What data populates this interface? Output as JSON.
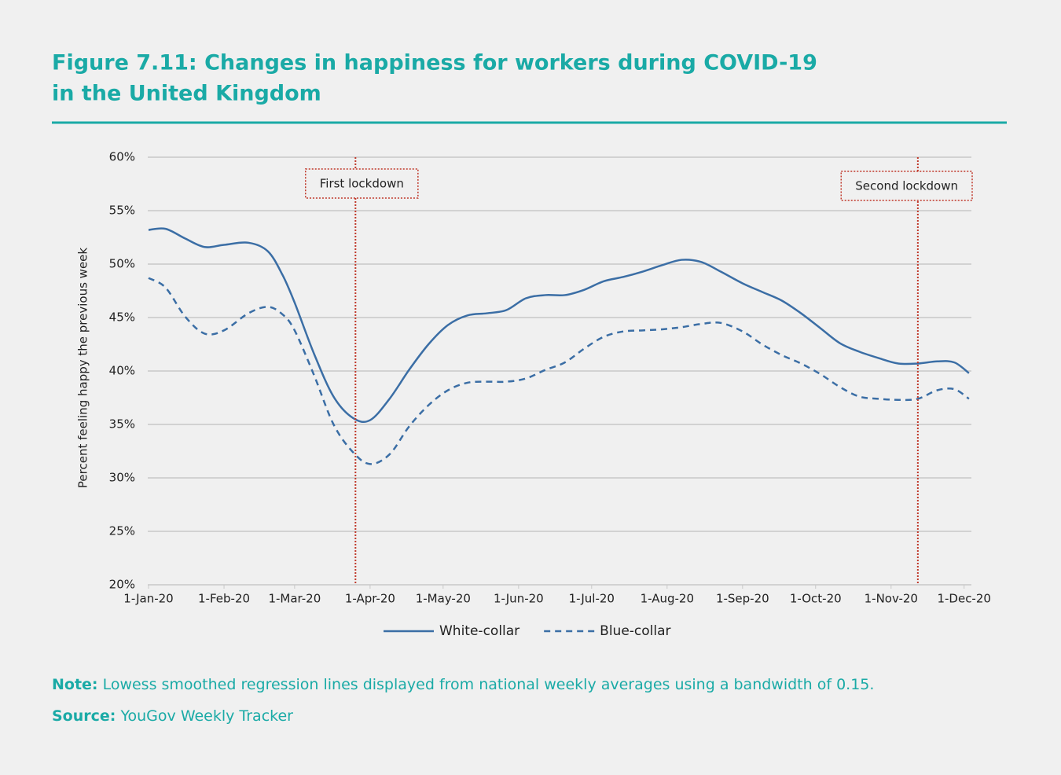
{
  "chart_data": {
    "type": "line",
    "title": "Figure 7.11: Changes in happiness for workers during COVID-19",
    "title_line2": "in the United Kingdom",
    "y_label": "Percent feeling happy the previous week",
    "x": [
      "2020-01-01",
      "2020-01-08",
      "2020-01-16",
      "2020-01-24",
      "2020-02-01",
      "2020-02-11",
      "2020-02-19",
      "2020-02-25",
      "2020-03-01",
      "2020-03-09",
      "2020-03-17",
      "2020-03-25",
      "2020-04-01",
      "2020-04-09",
      "2020-04-17",
      "2020-04-25",
      "2020-05-03",
      "2020-05-11",
      "2020-05-19",
      "2020-05-27",
      "2020-06-04",
      "2020-06-12",
      "2020-06-20",
      "2020-06-28",
      "2020-07-06",
      "2020-07-14",
      "2020-07-22",
      "2020-07-30",
      "2020-08-07",
      "2020-08-15",
      "2020-08-23",
      "2020-09-01",
      "2020-09-09",
      "2020-09-17",
      "2020-09-25",
      "2020-10-03",
      "2020-10-11",
      "2020-10-19",
      "2020-10-27",
      "2020-11-04",
      "2020-11-12",
      "2020-11-20",
      "2020-11-27",
      "2020-12-03"
    ],
    "series": [
      {
        "name": "White-collar",
        "color": "#3b6ea5",
        "dash": false,
        "values": [
          53.2,
          53.3,
          52.4,
          51.6,
          51.8,
          52.0,
          51.2,
          49.0,
          46.4,
          41.6,
          37.6,
          35.6,
          35.4,
          37.4,
          40.1,
          42.5,
          44.3,
          45.2,
          45.4,
          45.7,
          46.8,
          47.1,
          47.1,
          47.6,
          48.4,
          48.8,
          49.3,
          49.9,
          50.4,
          50.2,
          49.3,
          48.2,
          47.4,
          46.6,
          45.4,
          44.0,
          42.6,
          41.8,
          41.2,
          40.7,
          40.7,
          40.9,
          40.8,
          39.8
        ]
      },
      {
        "name": "Blue-collar",
        "color": "#3b6ea5",
        "dash": true,
        "values": [
          48.7,
          47.8,
          45.1,
          43.5,
          43.8,
          45.4,
          46.0,
          45.3,
          43.8,
          39.6,
          35.0,
          32.4,
          31.3,
          32.2,
          34.8,
          36.8,
          38.2,
          38.9,
          39.0,
          39.0,
          39.3,
          40.1,
          40.8,
          42.1,
          43.2,
          43.7,
          43.8,
          43.9,
          44.1,
          44.4,
          44.5,
          43.7,
          42.5,
          41.5,
          40.7,
          39.7,
          38.5,
          37.6,
          37.4,
          37.3,
          37.4,
          38.2,
          38.3,
          37.4
        ]
      }
    ],
    "xlim": [
      "2020-01-01",
      "2020-12-04"
    ],
    "xticks": [
      {
        "value": "2020-01-01",
        "label": "1-Jan-20"
      },
      {
        "value": "2020-02-01",
        "label": "1-Feb-20"
      },
      {
        "value": "2020-03-01",
        "label": "1-Mar-20"
      },
      {
        "value": "2020-04-01",
        "label": "1-Apr-20"
      },
      {
        "value": "2020-05-01",
        "label": "1-May-20"
      },
      {
        "value": "2020-06-01",
        "label": "1-Jun-20"
      },
      {
        "value": "2020-07-01",
        "label": "1-Jul-20"
      },
      {
        "value": "2020-08-01",
        "label": "1-Aug-20"
      },
      {
        "value": "2020-09-01",
        "label": "1-Sep-20"
      },
      {
        "value": "2020-10-01",
        "label": "1-Oct-20"
      },
      {
        "value": "2020-11-01",
        "label": "1-Nov-20"
      },
      {
        "value": "2020-12-01",
        "label": "1-Dec-20"
      }
    ],
    "ylim": [
      20,
      60
    ],
    "yticks": [
      {
        "value": 20,
        "label": "20%"
      },
      {
        "value": 25,
        "label": "25%"
      },
      {
        "value": 30,
        "label": "30%"
      },
      {
        "value": 35,
        "label": "35%"
      },
      {
        "value": 40,
        "label": "40%"
      },
      {
        "value": 45,
        "label": "45%"
      },
      {
        "value": 50,
        "label": "50%"
      },
      {
        "value": 55,
        "label": "55%"
      },
      {
        "value": 60,
        "label": "60%"
      }
    ],
    "grid": true,
    "annotations": [
      {
        "text": "First lockdown",
        "x": "2020-03-26",
        "color": "#c0392b"
      },
      {
        "text": "Second lockdown",
        "x": "2020-11-12",
        "color": "#c0392b"
      }
    ]
  },
  "note": {
    "label": "Note:",
    "text": "Lowess smoothed regression lines displayed from national weekly averages using a bandwidth of 0.15."
  },
  "source": {
    "label": "Source:",
    "text": "YouGov Weekly Tracker"
  }
}
